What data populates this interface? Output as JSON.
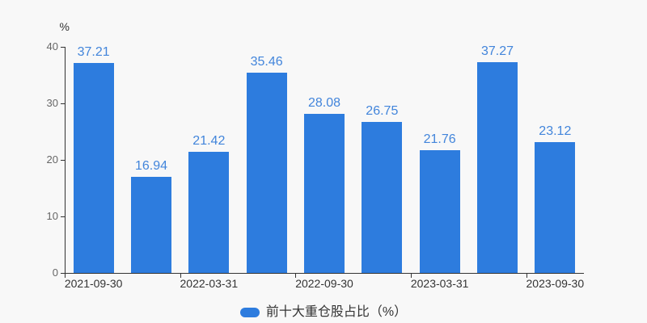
{
  "chart_data": {
    "type": "bar",
    "title": "",
    "ylabel": "%",
    "xlabel": "",
    "ylim": [
      0,
      40
    ],
    "yticks": [
      0,
      10,
      20,
      30,
      40
    ],
    "x_labels": [
      "2021-09-30",
      "2022-03-31",
      "2022-09-30",
      "2023-03-31",
      "2023-09-30"
    ],
    "x_label_interval": 2,
    "values": [
      37.21,
      16.94,
      21.42,
      35.46,
      28.08,
      26.75,
      21.76,
      37.27,
      23.12
    ],
    "grid": false,
    "legend_position": "bottom-center",
    "legend": [
      {
        "label": "前十大重仓股占比（%）"
      }
    ],
    "colors": {
      "bar": "#2D7CDE",
      "value_label": "#4285DB",
      "axis": "#333333",
      "y_tick_label": "#666666",
      "x_tick_label": "#333333",
      "legend_text": "#333333",
      "background": "#F8F8F8"
    }
  }
}
